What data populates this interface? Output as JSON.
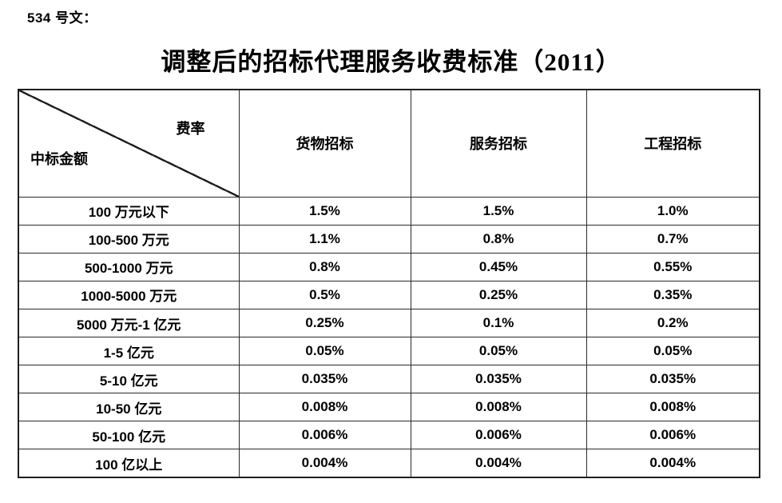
{
  "page": {
    "doc_label": "534 号文：",
    "title": "调整后的招标代理服务收费标准（2011）"
  },
  "table": {
    "corner": {
      "top_right": "费率",
      "bottom_left": "中标金额"
    },
    "columns": [
      "货物招标",
      "服务招标",
      "工程招标"
    ],
    "rows": [
      {
        "amount": "100 万元以下",
        "goods": "1.5%",
        "service": "1.5%",
        "engineering": "1.0%"
      },
      {
        "amount": "100-500 万元",
        "goods": "1.1%",
        "service": "0.8%",
        "engineering": "0.7%"
      },
      {
        "amount": "500-1000 万元",
        "goods": "0.8%",
        "service": "0.45%",
        "engineering": "0.55%"
      },
      {
        "amount": "1000-5000 万元",
        "goods": "0.5%",
        "service": "0.25%",
        "engineering": "0.35%"
      },
      {
        "amount": "5000 万元-1 亿元",
        "goods": "0.25%",
        "service": "0.1%",
        "engineering": "0.2%"
      },
      {
        "amount": "1-5 亿元",
        "goods": "0.05%",
        "service": "0.05%",
        "engineering": "0.05%"
      },
      {
        "amount": "5-10 亿元",
        "goods": "0.035%",
        "service": "0.035%",
        "engineering": "0.035%"
      },
      {
        "amount": "10-50 亿元",
        "goods": "0.008%",
        "service": "0.008%",
        "engineering": "0.008%"
      },
      {
        "amount": "50-100 亿元",
        "goods": "0.006%",
        "service": "0.006%",
        "engineering": "0.006%"
      },
      {
        "amount": "100 亿以上",
        "goods": "0.004%",
        "service": "0.004%",
        "engineering": "0.004%"
      }
    ]
  },
  "colors": {
    "background": "#ffffff",
    "text": "#000000",
    "border": "#1f1f1f"
  }
}
